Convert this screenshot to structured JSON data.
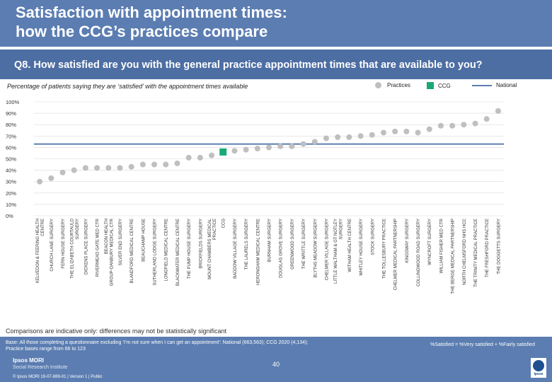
{
  "header": {
    "title_line1": "Satisfaction with appointment times:",
    "title_line2": "how the CCG’s practices compare"
  },
  "question": "Q8. How satisfied are you with the general practice appointment times that are available to you?",
  "subtitle": "Percentage of patients saying they are ‘satisfied’ with the appointment times available",
  "legend": {
    "practices": "Practices",
    "ccg": "CCG",
    "national": "National"
  },
  "colors": {
    "practices": "#bfbfbf",
    "ccg": "#19a974",
    "national": "#5b7db1",
    "header": "#5b7db1"
  },
  "chart_data": {
    "type": "scatter",
    "title": "Percentage of patients saying they are ‘satisfied’ with the appointment times available",
    "ylabel": "",
    "xlabel": "",
    "ylim": [
      0,
      100
    ],
    "y_ticks": [
      0,
      10,
      20,
      30,
      40,
      50,
      60,
      70,
      80,
      90,
      100
    ],
    "national_value": 63,
    "categories": [
      "KELVEDON & FEERING HEALTH CENTRE",
      "CHURCH LANE SURGERY",
      "FERN HOUSE SURGERY",
      "THE ELIZABETH COURTAULD SURGERY",
      "DICKENS PLACE SURGERY",
      "RIVERMEAD GATE MED CTR",
      "BEACON HEALTH GROUP-DANBURY MEDICAL CTR",
      "SILVER END SURGERY",
      "BLANDFORD MEDICAL CENTRE",
      "BEAUCHAMP HOUSE",
      "SUTHERLAND LODGE SURGERY",
      "LONGFIELD MEDICAL CENTRE",
      "BLACKWATER MEDICAL CENTRE",
      "THE PUMP HOUSE SURGERY",
      "BRICKFIELDS SURGERY",
      "MOUNT CHAMBERS MEDICAL PRACTICE",
      "CCG",
      "BADDOW VILLAGE SURGERY",
      "THE LAURELS SURGERY",
      "HERONGHAM MEDICAL CENTRE",
      "BURNHAM SURGERY",
      "DOUGLAS GROVE SURGERY",
      "GREENWOOD SURGERY",
      "THE WRITTLE SURGERY",
      "BLYTHS MEADOW SURGERY",
      "CHELMER VILLAGE SURGERY",
      "LITTLE WALTHAM & GT NOTLEY SURGERY",
      "WITHAM HEALTH CENTRE",
      "WHITLEY HOUSE SURGERY",
      "STOCK SURGERY",
      "THE TOLLESBURY PRACTICE",
      "CHELMER MEDICAL PARTNERSHIP",
      "KINGSWAY SURGERY",
      "COLLINGWOOD ROAD SURGERY",
      "WYNCROFT SURGERY",
      "WILLIAM FISHER MED CTR",
      "THE BERGE MEDICAL PARTNERSHIP",
      "NORTH CHELMSFORD NHS HCC",
      "THE TRINITY MEDICAL PRACTICE",
      "THE FRESHFORD PRACTICE",
      "THE DOGGETTS SURGERY"
    ],
    "values": [
      30,
      33,
      38,
      40,
      42,
      42,
      42,
      42,
      43,
      45,
      45,
      45,
      46,
      51,
      51,
      53,
      56,
      57,
      58,
      59,
      60,
      61,
      61,
      63,
      65,
      68,
      69,
      69,
      70,
      71,
      73,
      74,
      74,
      73,
      76,
      79,
      79,
      80,
      81,
      85,
      92
    ],
    "ccg_index": 16
  },
  "caveat": "Comparisons are indicative only: differences may not be statistically significant",
  "footer": {
    "base_line1": "Base: All those completing a questionnaire excluding ‘I’m not sure when I can get an appointment’: National (663,563); CCG 2020 (4,134);",
    "base_line2": "Practice bases range from 66 to 123",
    "formula": "%Satisfied = %Very satisfied + %Fairly satisfied",
    "page_number": "40",
    "brand": "Ipsos MORI",
    "brand_sub": "Social Research Institute",
    "copyright": "© Ipsos MORI     19-07-889-01 | Version 1 | Public",
    "logo_text": "Ipsos"
  }
}
